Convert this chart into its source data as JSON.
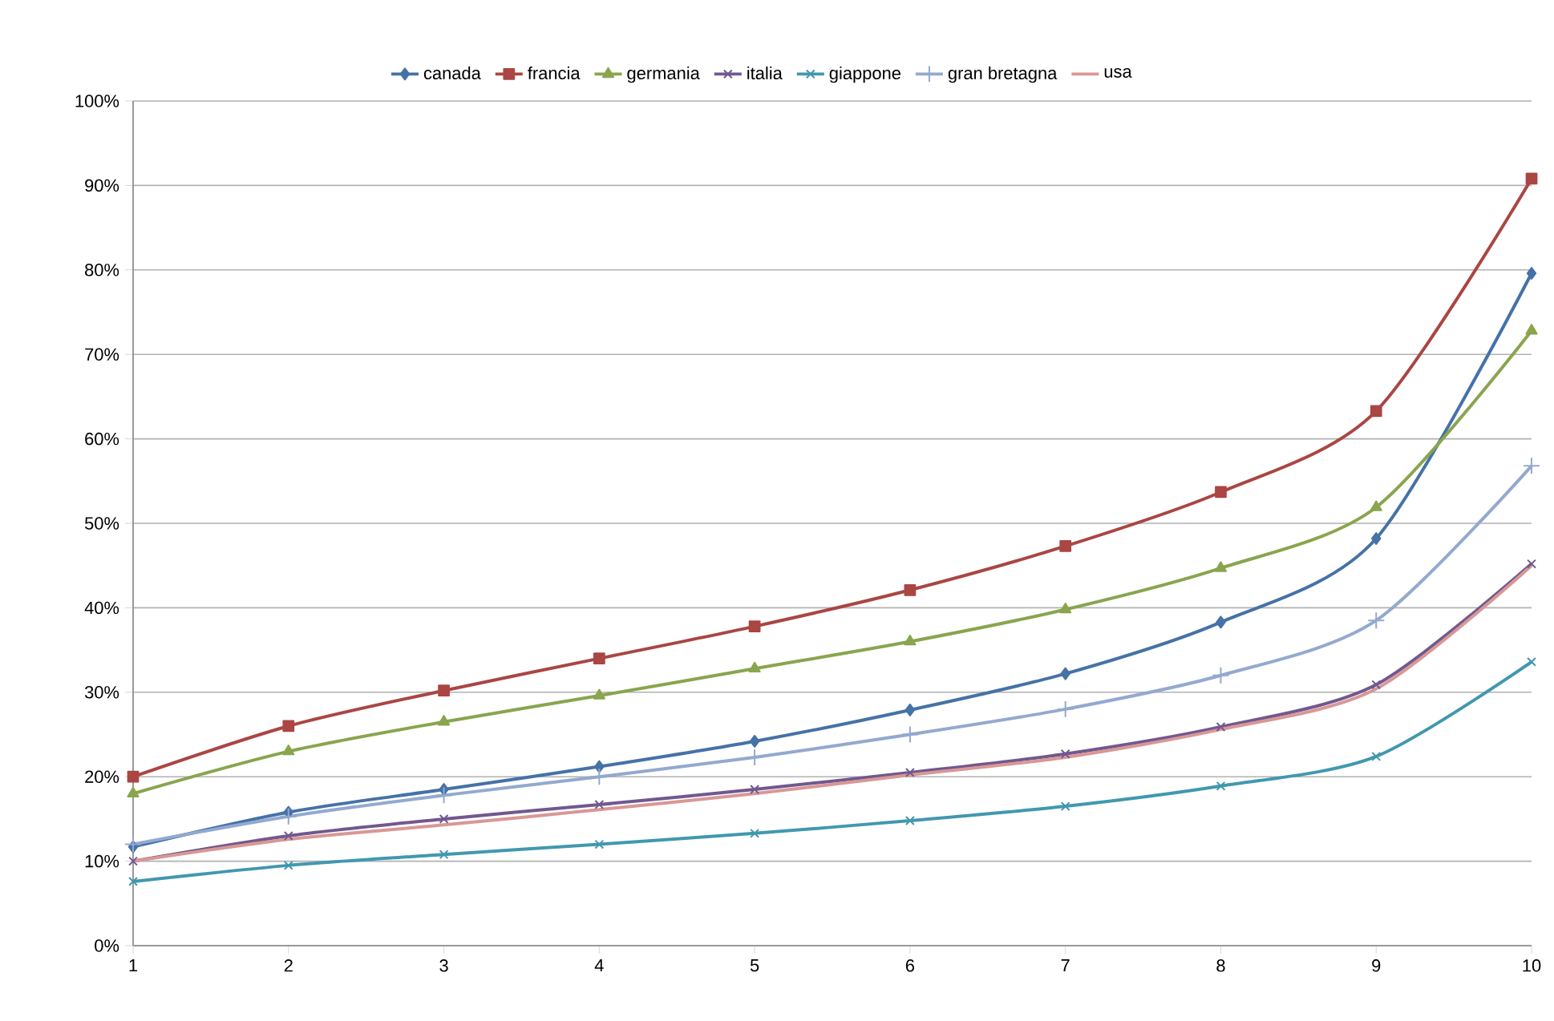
{
  "chart_data": {
    "type": "line",
    "x": [
      1,
      2,
      3,
      4,
      5,
      6,
      7,
      8,
      9,
      10
    ],
    "xlim": [
      1,
      10
    ],
    "xticks": [
      1,
      2,
      3,
      4,
      5,
      6,
      7,
      8,
      9,
      10
    ],
    "ylim": [
      0,
      100
    ],
    "yticks": [
      {
        "value": 0,
        "label": "0%"
      },
      {
        "value": 10,
        "label": "10%"
      },
      {
        "value": 20,
        "label": "20%"
      },
      {
        "value": 30,
        "label": "30%"
      },
      {
        "value": 40,
        "label": "40%"
      },
      {
        "value": 50,
        "label": "50%"
      },
      {
        "value": 60,
        "label": "60%"
      },
      {
        "value": 70,
        "label": "70%"
      },
      {
        "value": 80,
        "label": "80%"
      },
      {
        "value": 90,
        "label": "90%"
      },
      {
        "value": 100,
        "label": "100%"
      }
    ],
    "grid": "y",
    "legend": "top",
    "line_style": "solid",
    "series": [
      {
        "name": "canada",
        "color": "#4572a7",
        "marker": "diamond",
        "values": [
          11.7,
          15.8,
          18.5,
          21.2,
          24.2,
          27.9,
          32.2,
          38.3,
          48.2,
          79.6
        ]
      },
      {
        "name": "francia",
        "color": "#aa4643",
        "marker": "square",
        "values": [
          20,
          26,
          30.2,
          34,
          37.8,
          42.1,
          47.3,
          53.7,
          63.3,
          90.8
        ]
      },
      {
        "name": "germania",
        "color": "#89a54e",
        "marker": "triangle",
        "values": [
          18,
          23,
          26.5,
          29.6,
          32.8,
          36,
          39.8,
          44.7,
          51.9,
          72.8
        ]
      },
      {
        "name": "italia",
        "color": "#71588f",
        "marker": "cross",
        "values": [
          10,
          13,
          15,
          16.7,
          18.5,
          20.5,
          22.7,
          25.9,
          30.9,
          45.2
        ]
      },
      {
        "name": "giappone",
        "color": "#4198af",
        "marker": "cross",
        "values": [
          7.6,
          9.5,
          10.8,
          12,
          13.3,
          14.8,
          16.5,
          18.9,
          22.4,
          33.6
        ]
      },
      {
        "name": "gran bretagna",
        "color": "#93a9cf",
        "marker": "plus",
        "values": [
          12,
          15.3,
          17.8,
          20,
          22.3,
          25,
          28,
          32,
          38.5,
          56.8
        ]
      },
      {
        "name": "usa",
        "color": "#d99795",
        "marker": "none",
        "values": [
          10,
          12.6,
          14.3,
          16.1,
          18,
          20.2,
          22.3,
          25.6,
          30.4,
          45
        ]
      }
    ]
  }
}
